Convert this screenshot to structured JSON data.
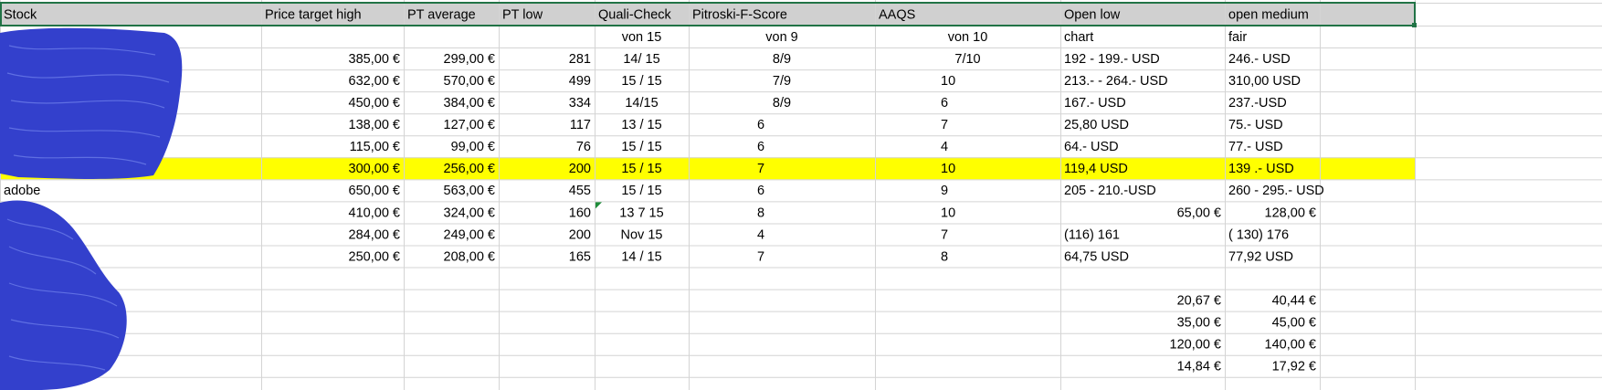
{
  "table": {
    "header": [
      "Stock",
      "Price target high",
      "PT average",
      "PT low",
      "Quali-Check",
      "Pitroski-F-Score",
      "AAQS",
      "Open low",
      "open medium"
    ],
    "rows": [
      [
        null,
        null,
        null,
        null,
        "von 15",
        "von 9",
        "von 10",
        "chart",
        "fair"
      ],
      [
        null,
        "385,00 €",
        "299,00 €",
        "281",
        "14/ 15",
        "8/9",
        "7/10",
        "192 - 199.- USD",
        "246.- USD"
      ],
      [
        null,
        "632,00 €",
        "570,00 €",
        "499",
        "15 / 15",
        "7/9",
        "10",
        "213.- - 264.- USD",
        "310,00 USD"
      ],
      [
        null,
        "450,00 €",
        "384,00 €",
        "334",
        "14/15",
        "8/9",
        "6",
        "167.- USD",
        "237.-USD"
      ],
      [
        null,
        "138,00 €",
        "127,00 €",
        "117",
        "13 / 15",
        "6",
        "7",
        "25,80 USD",
        "75.- USD"
      ],
      [
        null,
        "115,00 €",
        "99,00 €",
        "76",
        "15 / 15",
        "6",
        "4",
        "64.- USD",
        "77.- USD"
      ],
      [
        null,
        "300,00 €",
        "256,00 €",
        "200",
        "15 / 15",
        "7",
        "10",
        "119,4 USD",
        "139 .- USD"
      ],
      [
        "adobe",
        "650,00 €",
        "563,00 €",
        "455",
        "15 / 15",
        "6",
        "9",
        "205 - 210.-USD",
        "260 - 295.- USD"
      ],
      [
        null,
        "410,00 €",
        "324,00 €",
        "160",
        "13 7 15",
        "8",
        "10",
        "65,00 €",
        "128,00 €"
      ],
      [
        null,
        "284,00 €",
        "249,00 €",
        "200",
        "Nov 15",
        "4",
        "7",
        "(116) 161",
        "( 130) 176"
      ],
      [
        null,
        "250,00 €",
        "208,00 €",
        "165",
        "14 / 15",
        "7",
        "8",
        "64,75 USD",
        "77,92 USD"
      ],
      [
        null,
        null,
        null,
        null,
        null,
        null,
        null,
        null,
        null
      ],
      [
        null,
        null,
        null,
        null,
        null,
        null,
        null,
        "20,67 €",
        "40,44 €"
      ],
      [
        null,
        null,
        null,
        null,
        null,
        null,
        null,
        "35,00 €",
        "45,00 €"
      ],
      [
        null,
        null,
        null,
        null,
        null,
        null,
        null,
        "120,00 €",
        "140,00 €"
      ],
      [
        null,
        null,
        null,
        null,
        null,
        null,
        null,
        "14,84 €",
        "17,92 €"
      ]
    ]
  }
}
